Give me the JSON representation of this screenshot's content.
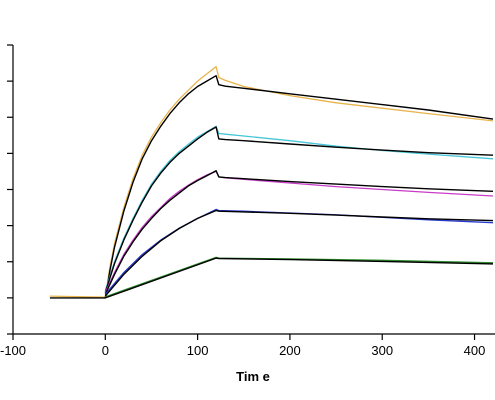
{
  "chart_data": {
    "type": "line",
    "title": "",
    "xlabel": "Tim e",
    "ylabel": "",
    "xlim": [
      -100,
      420
    ],
    "ylim": [
      -10,
      70
    ],
    "x_ticks": [
      -100,
      0,
      100,
      200,
      300,
      400
    ],
    "x_tick_labels": [
      "-100",
      "0",
      "100",
      "200",
      "300",
      "400"
    ],
    "y_ticks": [
      -10,
      0,
      10,
      20,
      30,
      40,
      50,
      60,
      70
    ],
    "y_tick_labels": [
      "",
      "",
      "",
      "",
      "",
      "",
      "",
      "",
      ""
    ],
    "grid": false,
    "legend": "none",
    "association_end": 120,
    "series": [
      {
        "color": "#e8b44c",
        "x": [
          -60,
          0,
          5,
          10,
          20,
          30,
          40,
          50,
          60,
          70,
          80,
          90,
          100,
          110,
          120,
          123,
          130,
          150,
          200,
          250,
          300,
          350,
          420
        ],
        "values": [
          0.5,
          0.2,
          8.5,
          15.0,
          25.0,
          33.0,
          39.5,
          44.5,
          48.5,
          52.0,
          55.0,
          57.5,
          60.0,
          62.0,
          64.0,
          61.0,
          60.2,
          58.5,
          56.0,
          54.0,
          52.5,
          51.0,
          49.0
        ]
      },
      {
        "color": "#000000",
        "x": [
          -60,
          0,
          5,
          10,
          20,
          30,
          40,
          50,
          60,
          70,
          80,
          90,
          100,
          110,
          120,
          123,
          130,
          150,
          200,
          250,
          300,
          350,
          420
        ],
        "values": [
          0.0,
          0.0,
          7.5,
          14.0,
          24.0,
          32.0,
          38.5,
          43.5,
          47.5,
          51.0,
          54.0,
          56.5,
          58.5,
          60.0,
          61.5,
          59.0,
          58.6,
          58.0,
          56.5,
          55.0,
          53.5,
          52.0,
          49.5
        ]
      },
      {
        "color": "#46c6d8",
        "x": [
          0,
          5,
          10,
          20,
          30,
          40,
          50,
          60,
          70,
          80,
          90,
          100,
          110,
          120,
          123,
          130,
          150,
          200,
          250,
          300,
          350,
          420
        ],
        "values": [
          2.0,
          6.0,
          10.0,
          16.5,
          22.0,
          27.0,
          31.5,
          35.0,
          38.0,
          40.5,
          42.5,
          44.5,
          46.0,
          47.5,
          45.5,
          45.3,
          44.8,
          43.5,
          42.0,
          40.8,
          39.8,
          38.5
        ]
      },
      {
        "color": "#000000",
        "x": [
          0,
          5,
          10,
          20,
          30,
          40,
          50,
          60,
          70,
          80,
          90,
          100,
          110,
          120,
          123,
          130,
          150,
          200,
          250,
          300,
          350,
          420
        ],
        "values": [
          1.5,
          5.5,
          9.5,
          16.0,
          21.5,
          26.5,
          31.0,
          34.5,
          37.5,
          40.0,
          42.0,
          44.0,
          45.8,
          47.3,
          44.0,
          43.8,
          43.5,
          42.6,
          41.7,
          40.9,
          40.2,
          39.5
        ]
      },
      {
        "color": "#c83cc8",
        "x": [
          0,
          10,
          20,
          30,
          40,
          50,
          60,
          70,
          80,
          90,
          100,
          110,
          120,
          123,
          130,
          150,
          200,
          250,
          300,
          350,
          420
        ],
        "values": [
          1.5,
          7.0,
          12.0,
          16.0,
          19.5,
          22.5,
          25.0,
          27.5,
          29.5,
          31.2,
          32.7,
          34.0,
          35.0,
          33.5,
          33.2,
          32.8,
          31.8,
          30.8,
          30.0,
          29.2,
          28.2
        ]
      },
      {
        "color": "#000000",
        "x": [
          0,
          10,
          20,
          30,
          40,
          50,
          60,
          70,
          80,
          90,
          100,
          110,
          120,
          123,
          130,
          150,
          200,
          250,
          300,
          350,
          420
        ],
        "values": [
          1.0,
          6.5,
          11.5,
          15.5,
          19.0,
          22.0,
          24.7,
          27.0,
          29.0,
          31.0,
          32.5,
          33.8,
          35.2,
          33.5,
          33.3,
          33.0,
          32.2,
          31.5,
          30.8,
          30.2,
          29.5
        ]
      },
      {
        "color": "#2a3ad0",
        "x": [
          0,
          20,
          40,
          60,
          80,
          100,
          120,
          123,
          150,
          200,
          250,
          300,
          350,
          420
        ],
        "values": [
          1.0,
          7.0,
          12.0,
          16.0,
          19.3,
          22.0,
          24.5,
          24.2,
          24.0,
          23.5,
          23.0,
          22.3,
          21.6,
          20.8
        ]
      },
      {
        "color": "#000000",
        "x": [
          0,
          20,
          40,
          60,
          80,
          100,
          120,
          123,
          150,
          200,
          250,
          300,
          350,
          420
        ],
        "values": [
          0.5,
          6.5,
          11.5,
          15.8,
          19.2,
          22.0,
          24.2,
          24.0,
          23.8,
          23.4,
          22.9,
          22.4,
          21.9,
          21.4
        ]
      },
      {
        "color": "#2a8a2a",
        "x": [
          0,
          120,
          123,
          200,
          300,
          420
        ],
        "values": [
          0.3,
          11.2,
          11.0,
          10.8,
          10.4,
          9.7
        ]
      },
      {
        "color": "#000000",
        "x": [
          0,
          120,
          123,
          200,
          300,
          420
        ],
        "values": [
          0.0,
          11.0,
          10.9,
          10.6,
          10.1,
          9.4
        ]
      }
    ]
  }
}
